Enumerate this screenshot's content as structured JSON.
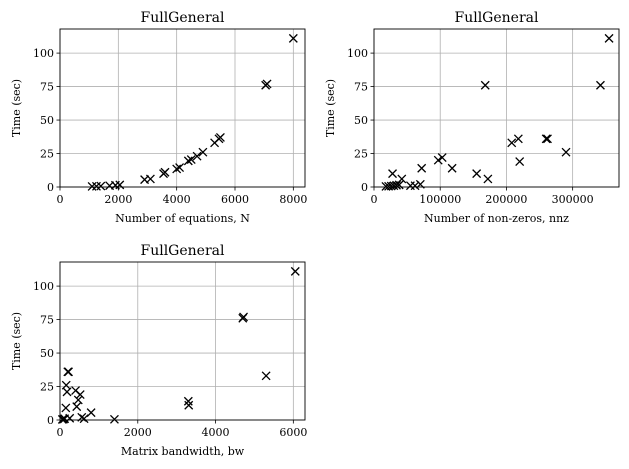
{
  "chart_data": [
    {
      "type": "scatter",
      "title": "FullGeneral",
      "xlabel": "Number of equations, N",
      "ylabel": "Time (sec)",
      "xlim": [
        0,
        8400
      ],
      "ylim": [
        0,
        118
      ],
      "xticks": [
        0,
        2000,
        4000,
        6000,
        8000
      ],
      "xtick_labels": [
        "0",
        "2000",
        "4000",
        "6000",
        "8000"
      ],
      "yticks": [
        0,
        25,
        50,
        75,
        100
      ],
      "ytick_labels": [
        "0",
        "25",
        "50",
        "75",
        "100"
      ],
      "grid": true,
      "marker": "x",
      "color": "#000000",
      "points": [
        [
          1100,
          0.4
        ],
        [
          1250,
          0.5
        ],
        [
          1400,
          0.7
        ],
        [
          1700,
          1.0
        ],
        [
          1900,
          1.3
        ],
        [
          2050,
          1.6
        ],
        [
          2900,
          5.5
        ],
        [
          3100,
          6.0
        ],
        [
          3550,
          10.0
        ],
        [
          3600,
          11.0
        ],
        [
          4000,
          13.5
        ],
        [
          4100,
          14.5
        ],
        [
          4400,
          19.5
        ],
        [
          4500,
          20.5
        ],
        [
          4700,
          23.0
        ],
        [
          4900,
          26.0
        ],
        [
          5300,
          33.0
        ],
        [
          5450,
          36.0
        ],
        [
          5500,
          37.0
        ],
        [
          7050,
          76.0
        ],
        [
          7100,
          77.0
        ],
        [
          8000,
          111.0
        ]
      ]
    },
    {
      "type": "scatter",
      "title": "FullGeneral",
      "xlabel": "Number of non-zeros, nnz",
      "ylabel": "Time (sec)",
      "xlim": [
        0,
        370000
      ],
      "ylim": [
        0,
        118
      ],
      "xticks": [
        0,
        100000,
        200000,
        300000
      ],
      "xtick_labels": [
        "0",
        "100000",
        "200000",
        "300000"
      ],
      "yticks": [
        0,
        25,
        50,
        75,
        100
      ],
      "ytick_labels": [
        "0",
        "25",
        "50",
        "75",
        "100"
      ],
      "grid": true,
      "marker": "x",
      "color": "#000000",
      "points": [
        [
          18000,
          0.4
        ],
        [
          22000,
          0.5
        ],
        [
          26000,
          0.7
        ],
        [
          30000,
          1.0
        ],
        [
          34000,
          1.3
        ],
        [
          38000,
          1.6
        ],
        [
          28000,
          10.0
        ],
        [
          42000,
          6.0
        ],
        [
          55000,
          1.0
        ],
        [
          62000,
          1.0
        ],
        [
          70000,
          2.0
        ],
        [
          72000,
          14.0
        ],
        [
          97000,
          20.0
        ],
        [
          103000,
          22.0
        ],
        [
          118000,
          14.0
        ],
        [
          155000,
          10.0
        ],
        [
          168000,
          76.0
        ],
        [
          172000,
          6.0
        ],
        [
          208000,
          33.0
        ],
        [
          218000,
          36.0
        ],
        [
          220000,
          19.0
        ],
        [
          260000,
          36.0
        ],
        [
          262000,
          36.0
        ],
        [
          290000,
          26.0
        ],
        [
          342000,
          76.0
        ],
        [
          355000,
          111.0
        ]
      ]
    },
    {
      "type": "scatter",
      "title": "FullGeneral",
      "xlabel": "Matrix bandwidth, bw",
      "ylabel": "Time (sec)",
      "xlim": [
        0,
        6300
      ],
      "ylim": [
        0,
        118
      ],
      "xticks": [
        0,
        2000,
        4000,
        6000
      ],
      "xtick_labels": [
        "0",
        "2000",
        "4000",
        "6000"
      ],
      "yticks": [
        0,
        25,
        50,
        75,
        100
      ],
      "ytick_labels": [
        "0",
        "25",
        "50",
        "75",
        "100"
      ],
      "grid": true,
      "marker": "x",
      "color": "#000000",
      "points": [
        [
          60,
          0.4
        ],
        [
          90,
          0.6
        ],
        [
          120,
          1.0
        ],
        [
          150,
          9.0
        ],
        [
          160,
          26.0
        ],
        [
          180,
          21.0
        ],
        [
          200,
          36.0
        ],
        [
          220,
          36.0
        ],
        [
          250,
          1.3
        ],
        [
          400,
          22.0
        ],
        [
          430,
          10.0
        ],
        [
          470,
          15.0
        ],
        [
          520,
          19.0
        ],
        [
          560,
          2.0
        ],
        [
          620,
          1.0
        ],
        [
          800,
          5.5
        ],
        [
          1400,
          0.5
        ],
        [
          3300,
          14.0
        ],
        [
          3310,
          11.0
        ],
        [
          4700,
          76.0
        ],
        [
          4720,
          77.0
        ],
        [
          5300,
          33.0
        ],
        [
          6050,
          111.0
        ]
      ]
    }
  ]
}
